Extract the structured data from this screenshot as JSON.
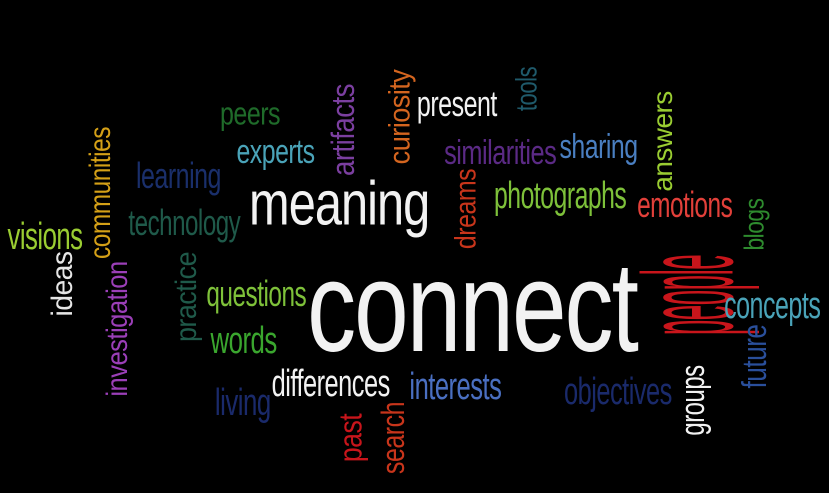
{
  "words": [
    {
      "id": "connect",
      "text": "connect",
      "color": "#f2f2f2",
      "orient": "h"
    },
    {
      "id": "people",
      "text": "people",
      "color": "#c8151b",
      "orient": "v"
    },
    {
      "id": "meaning",
      "text": "meaning",
      "color": "#f2f2f2",
      "orient": "h"
    },
    {
      "id": "present",
      "text": "present",
      "color": "#f2f2f2",
      "orient": "h"
    },
    {
      "id": "tools",
      "text": "tools",
      "color": "#1f5a6b",
      "orient": "v"
    },
    {
      "id": "curiosity",
      "text": "curiosity",
      "color": "#d4651f",
      "orient": "v"
    },
    {
      "id": "artifacts",
      "text": "artifacts",
      "color": "#7b3fa0",
      "orient": "v"
    },
    {
      "id": "peers",
      "text": "peers",
      "color": "#1f6b2a",
      "orient": "h"
    },
    {
      "id": "experts",
      "text": "experts",
      "color": "#4aa3b8",
      "orient": "h"
    },
    {
      "id": "similarities",
      "text": "similarities",
      "color": "#5b2a85",
      "orient": "h"
    },
    {
      "id": "sharing",
      "text": "sharing",
      "color": "#4a7fc1",
      "orient": "h"
    },
    {
      "id": "answers",
      "text": "answers",
      "color": "#9acd32",
      "orient": "v"
    },
    {
      "id": "learning",
      "text": "learning",
      "color": "#1a2f6b",
      "orient": "h"
    },
    {
      "id": "communities",
      "text": "communities",
      "color": "#d4a017",
      "orient": "v"
    },
    {
      "id": "visions",
      "text": "visions",
      "color": "#9acd32",
      "orient": "h"
    },
    {
      "id": "technology",
      "text": "technology",
      "color": "#1f5a4a",
      "orient": "h"
    },
    {
      "id": "dreams",
      "text": "dreams",
      "color": "#c8351b",
      "orient": "v"
    },
    {
      "id": "photographs",
      "text": "photographs",
      "color": "#7ec13a",
      "orient": "h"
    },
    {
      "id": "emotions",
      "text": "emotions",
      "color": "#e2403a",
      "orient": "h"
    },
    {
      "id": "blogs",
      "text": "blogs",
      "color": "#2e8b2e",
      "orient": "v"
    },
    {
      "id": "ideas",
      "text": "ideas",
      "color": "#e6e6e6",
      "orient": "v"
    },
    {
      "id": "investigation",
      "text": "investigation",
      "color": "#9b3fb8",
      "orient": "v"
    },
    {
      "id": "practice",
      "text": "practice",
      "color": "#1f5a4a",
      "orient": "v"
    },
    {
      "id": "questions",
      "text": "questions",
      "color": "#7ec13a",
      "orient": "h"
    },
    {
      "id": "words",
      "text": "words",
      "color": "#3aa62e",
      "orient": "h"
    },
    {
      "id": "concepts",
      "text": "concepts",
      "color": "#4aa3b8",
      "orient": "h"
    },
    {
      "id": "future",
      "text": "future",
      "color": "#2a4f9b",
      "orient": "v"
    },
    {
      "id": "groups",
      "text": "groups",
      "color": "#f2f2f2",
      "orient": "v"
    },
    {
      "id": "differences",
      "text": "differences",
      "color": "#f2f2f2",
      "orient": "h"
    },
    {
      "id": "living",
      "text": "living",
      "color": "#1a2a6b",
      "orient": "h"
    },
    {
      "id": "interests",
      "text": "interests",
      "color": "#4a6fc1",
      "orient": "h"
    },
    {
      "id": "objectives",
      "text": "objectives",
      "color": "#1a2a6b",
      "orient": "h"
    },
    {
      "id": "past",
      "text": "past",
      "color": "#c8151b",
      "orient": "v"
    },
    {
      "id": "search",
      "text": "search",
      "color": "#c8351b",
      "orient": "v"
    }
  ]
}
